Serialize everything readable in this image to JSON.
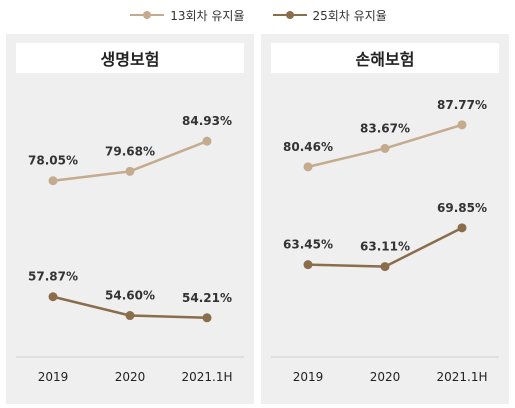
{
  "legend": [
    {
      "label": "13회차 유지율",
      "color": "#c4ab8e"
    },
    {
      "label": "25회차 유지율",
      "color": "#8a6d4b"
    }
  ],
  "chart_data": [
    {
      "type": "line",
      "title": "생명보험",
      "categories": [
        "2019",
        "2020",
        "2021.1H"
      ],
      "series": [
        {
          "name": "13회차 유지율",
          "values": [
            78.05,
            79.68,
            84.93
          ],
          "labels": [
            "78.05%",
            "79.68%",
            "84.93%"
          ],
          "color": "#c4ab8e"
        },
        {
          "name": "25회차 유지율",
          "values": [
            57.87,
            54.6,
            54.21
          ],
          "labels": [
            "57.87%",
            "54.60%",
            "54.21%"
          ],
          "color": "#8a6d4b"
        }
      ]
    },
    {
      "type": "line",
      "title": "손해보험",
      "categories": [
        "2019",
        "2020",
        "2021.1H"
      ],
      "series": [
        {
          "name": "13회차 유지율",
          "values": [
            80.46,
            83.67,
            87.77
          ],
          "labels": [
            "80.46%",
            "83.67%",
            "87.77%"
          ],
          "color": "#c4ab8e"
        },
        {
          "name": "25회차 유지율",
          "values": [
            63.45,
            63.11,
            69.85
          ],
          "labels": [
            "63.45%",
            "63.11%",
            "69.85%"
          ],
          "color": "#8a6d4b"
        }
      ]
    }
  ]
}
